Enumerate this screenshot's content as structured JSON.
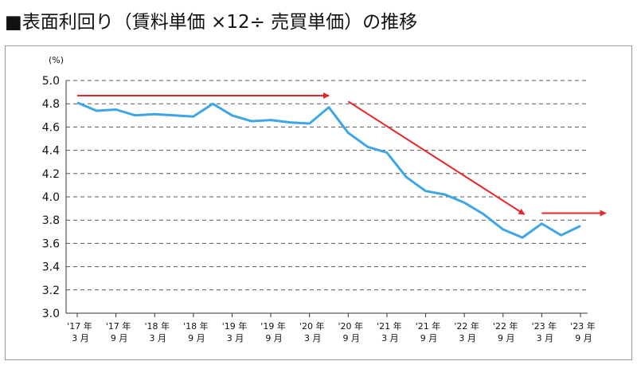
{
  "header": {
    "title": "■表面利回り（賃料単価 ×12÷ 売買単価）の推移"
  },
  "chart_data": {
    "type": "line",
    "title": "■表面利回り（賃料単価 ×12÷ 売買単価）の推移",
    "ylabel": "(%)",
    "xlabel": "",
    "ylim": [
      3.0,
      5.0
    ],
    "yticks": [
      "5.0",
      "4.8",
      "4.6",
      "4.4",
      "4.2",
      "4.0",
      "3.8",
      "3.6",
      "3.4",
      "3.2",
      "3.0"
    ],
    "grid": "horizontal-dashed",
    "xtick_labels": [
      [
        "'17 年",
        "3 月"
      ],
      [
        "'17 年",
        "9 月"
      ],
      [
        "'18 年",
        "3 月"
      ],
      [
        "'18 年",
        "9 月"
      ],
      [
        "'19 年",
        "3 月"
      ],
      [
        "'19 年",
        "9 月"
      ],
      [
        "'20 年",
        "3 月"
      ],
      [
        "'20 年",
        "9 月"
      ],
      [
        "'21 年",
        "3 月"
      ],
      [
        "'21 年",
        "9 月"
      ],
      [
        "'22 年",
        "3 月"
      ],
      [
        "'22 年",
        "9 月"
      ],
      [
        "'23 年",
        "3 月"
      ],
      [
        "'23 年",
        "9 月"
      ]
    ],
    "series": [
      {
        "color": "#3ea6e6",
        "values": [
          4.81,
          4.74,
          4.75,
          4.7,
          4.71,
          4.7,
          4.69,
          4.8,
          4.7,
          4.65,
          4.66,
          4.64,
          4.63,
          4.77,
          4.55,
          4.43,
          4.38,
          4.17,
          4.05,
          4.02,
          3.95,
          3.85,
          3.72,
          3.65,
          3.77,
          3.67,
          3.75
        ]
      }
    ],
    "annotations": [
      {
        "type": "arrow",
        "color": "#e8252a",
        "from": [
          0,
          4.87
        ],
        "to": [
          13,
          4.87
        ]
      },
      {
        "type": "arrow",
        "color": "#e8252a",
        "from": [
          14,
          4.82
        ],
        "to": [
          23.1,
          3.85
        ]
      },
      {
        "type": "arrow",
        "color": "#e8252a",
        "from": [
          24,
          3.86
        ],
        "to": [
          27.3,
          3.86
        ]
      }
    ]
  }
}
